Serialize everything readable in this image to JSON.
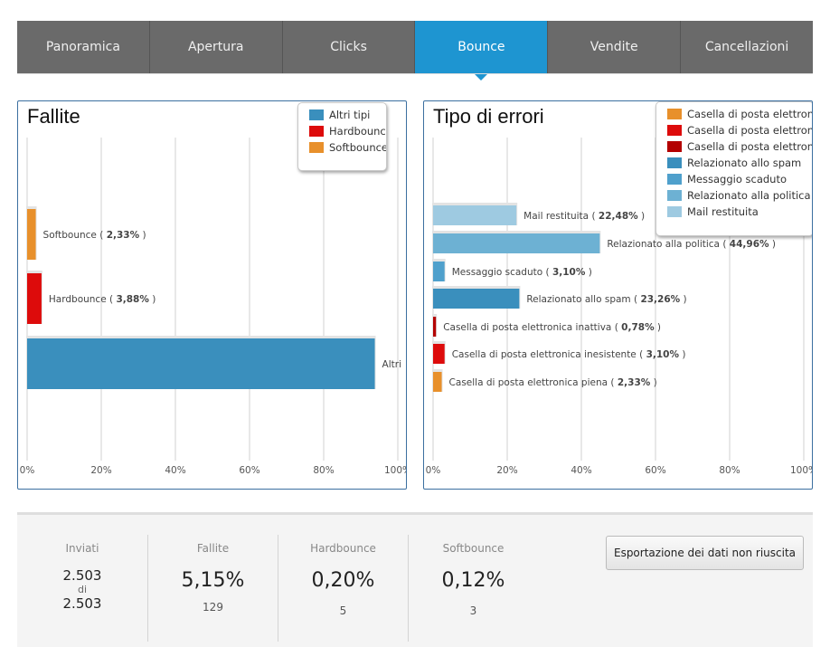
{
  "tabs": [
    {
      "label": "Panoramica"
    },
    {
      "label": "Apertura"
    },
    {
      "label": "Clicks"
    },
    {
      "label": "Bounce",
      "active": true
    },
    {
      "label": "Vendite"
    },
    {
      "label": "Cancellazioni"
    }
  ],
  "chart_data": [
    {
      "type": "bar",
      "orientation": "horizontal",
      "title": "Fallite",
      "xlim": [
        0,
        100
      ],
      "x_tick_labels": [
        "0%",
        "20%",
        "40%",
        "60%",
        "80%",
        "100%"
      ],
      "grid": true,
      "legend_position": "top-right",
      "categories": [
        "Softbounce",
        "Hardbounce",
        "Altri tipi"
      ],
      "values": [
        2.33,
        3.88,
        93.79
      ],
      "colors": [
        "#e8902b",
        "#dd0b0b",
        "#3a8fbd"
      ],
      "data_labels": [
        "Softbounce",
        "Hardbounce",
        "Altri"
      ],
      "data_values": [
        "2,33%",
        "3,88%",
        ""
      ],
      "legend": [
        {
          "name": "Altri tipi",
          "color": "#3a8fbd"
        },
        {
          "name": "Hardbounce",
          "color": "#dd0b0b"
        },
        {
          "name": "Softbounce",
          "color": "#e8902b"
        }
      ]
    },
    {
      "type": "bar",
      "orientation": "horizontal",
      "title": "Tipo di errori",
      "xlim": [
        0,
        100
      ],
      "x_tick_labels": [
        "0%",
        "20%",
        "40%",
        "60%",
        "80%",
        "100%"
      ],
      "grid": true,
      "legend_position": "top-right",
      "categories": [
        "Mail restituita",
        "Relazionato alla politica",
        "Messaggio scaduto",
        "Relazionato allo spam",
        "Casella di posta elettronica inattiva",
        "Casella di posta elettronica inesistente",
        "Casella di posta elettronica piena"
      ],
      "values": [
        22.48,
        44.96,
        3.1,
        23.26,
        0.78,
        3.1,
        2.33
      ],
      "colors": [
        "#9ecae1",
        "#6db1d3",
        "#4fa0cc",
        "#3a8fbd",
        "#b30000",
        "#dd0b0b",
        "#e8902b"
      ],
      "data_labels": [
        "Mail restituita",
        "Relazionato alla politica",
        "Messaggio scaduto",
        "Relazionato allo spam",
        "Casella di posta elettronica inattiva",
        "Casella di posta elettronica inesistente",
        "Casella di posta elettronica piena"
      ],
      "data_values": [
        "22,48%",
        "44,96%",
        "3,10%",
        "23,26%",
        "0,78%",
        "3,10%",
        "2,33%"
      ],
      "legend": [
        {
          "name": "Casella di posta elettron",
          "color": "#e8902b"
        },
        {
          "name": "Casella di posta elettron",
          "color": "#dd0b0b"
        },
        {
          "name": "Casella di posta elettron",
          "color": "#b30000"
        },
        {
          "name": "Relazionato allo spam",
          "color": "#3a8fbd"
        },
        {
          "name": "Messaggio scaduto",
          "color": "#4fa0cc"
        },
        {
          "name": "Relazionato alla politica",
          "color": "#6db1d3"
        },
        {
          "name": "Mail restituita",
          "color": "#9ecae1"
        }
      ]
    }
  ],
  "stats": {
    "sent": {
      "label": "Inviati",
      "value": "2.503",
      "of": "di",
      "total": "2.503"
    },
    "failed": {
      "label": "Fallite",
      "percent": "5,15%",
      "count": "129"
    },
    "hardbounce": {
      "label": "Hardbounce",
      "percent": "0,20%",
      "count": "5"
    },
    "softbounce": {
      "label": "Softbounce",
      "percent": "0,12%",
      "count": "3"
    }
  },
  "export_button": "Esportazione dei dati non riuscita"
}
